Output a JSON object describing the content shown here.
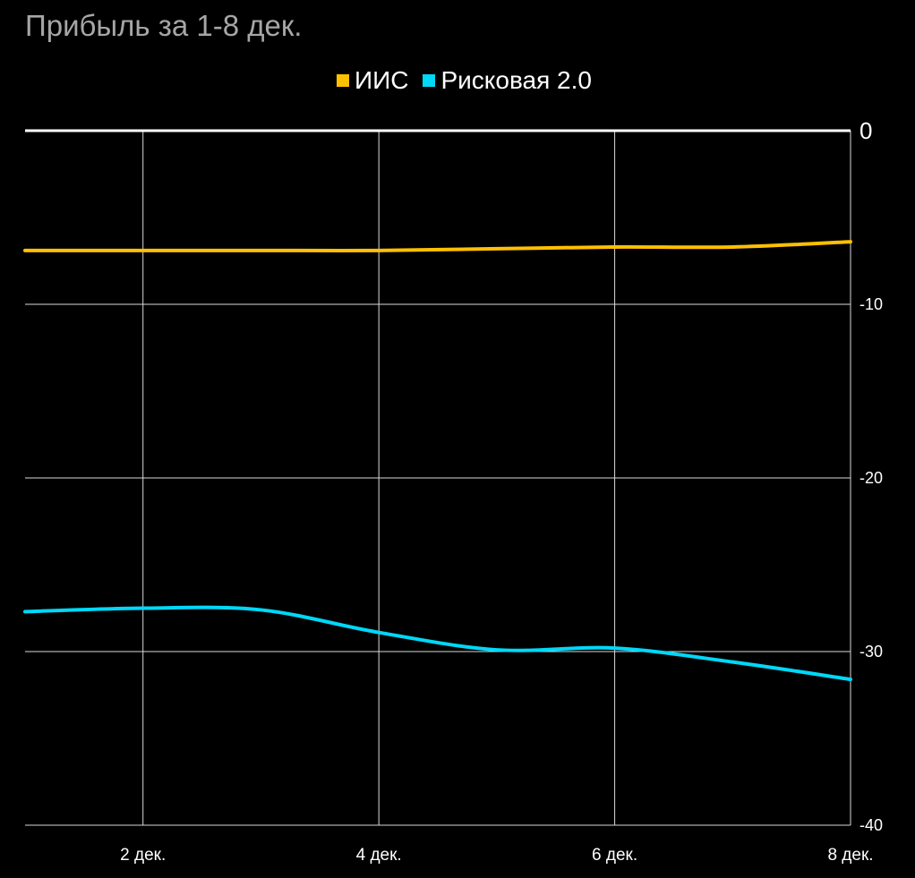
{
  "chart_data": {
    "type": "line",
    "title": "Прибыль за 1-8 дек.",
    "x": [
      1,
      2,
      3,
      4,
      5,
      6,
      7,
      8
    ],
    "x_ticks": [
      {
        "value": 2,
        "label": "2 дек."
      },
      {
        "value": 4,
        "label": "4 дек."
      },
      {
        "value": 6,
        "label": "6 дек."
      },
      {
        "value": 8,
        "label": "8 дек."
      }
    ],
    "xlim": [
      1,
      8
    ],
    "ylim": [
      -40,
      0
    ],
    "y_ticks": [
      {
        "value": 0,
        "label": "0"
      },
      {
        "value": -10,
        "label": "-10"
      },
      {
        "value": -20,
        "label": "-20"
      },
      {
        "value": -30,
        "label": "-30"
      },
      {
        "value": -40,
        "label": "-40"
      }
    ],
    "y_axis_side": "right",
    "grid": true,
    "legend_position": "top-center",
    "series": [
      {
        "name": "ИИС",
        "color": "#ffc000",
        "values": [
          -6.9,
          -6.9,
          -6.9,
          -6.9,
          -6.8,
          -6.7,
          -6.7,
          -6.4
        ]
      },
      {
        "name": "Рисковая 2.0",
        "color": "#00d8f8",
        "values": [
          -27.7,
          -27.5,
          -27.6,
          -28.9,
          -29.9,
          -29.8,
          -30.6,
          -31.6
        ]
      }
    ]
  }
}
